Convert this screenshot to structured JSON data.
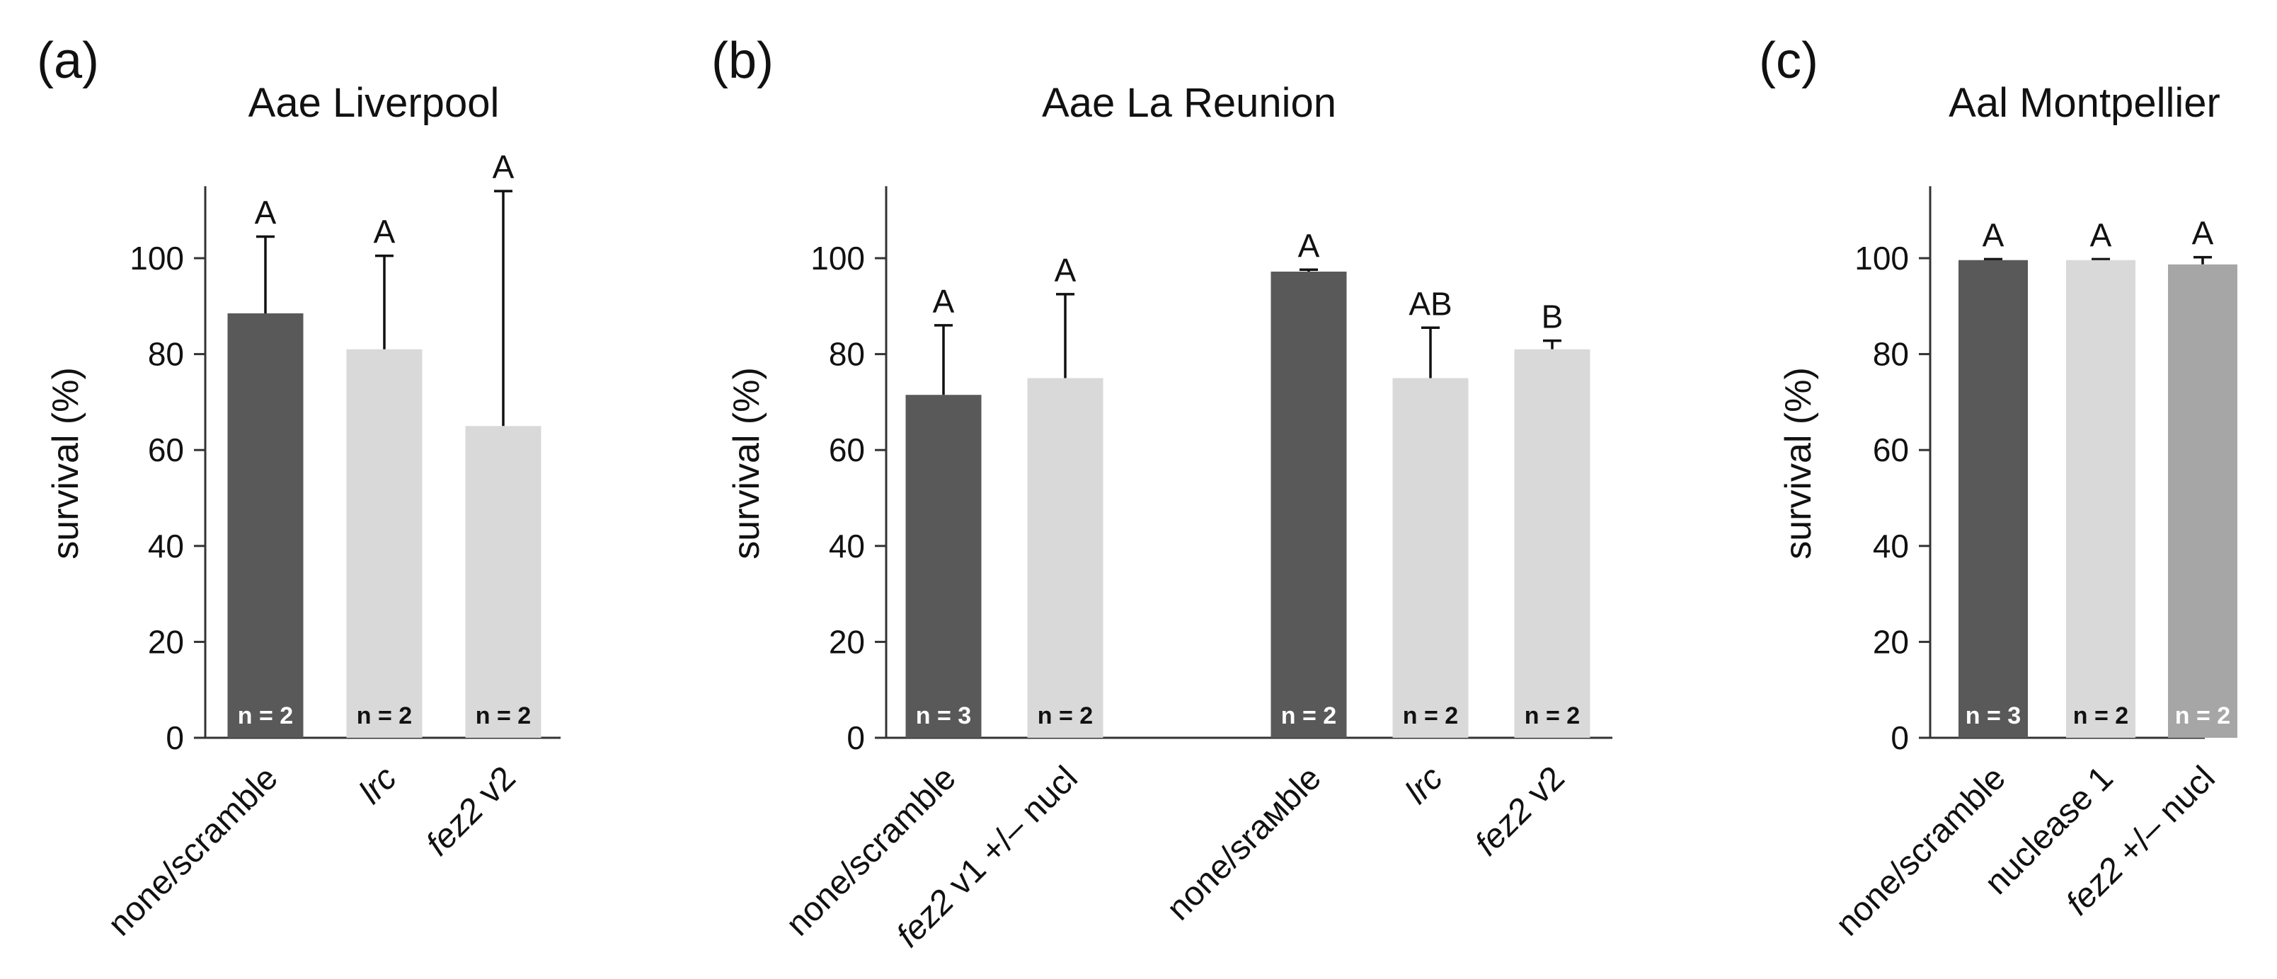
{
  "chart_data": [
    {
      "type": "bar",
      "panel": "(a)",
      "title": "Aae Liverpool",
      "ylabel": "survival (%)",
      "ylim": [
        0,
        115
      ],
      "yticks": [
        0,
        20,
        40,
        60,
        80,
        100
      ],
      "grid": false,
      "bars": [
        {
          "label": "none/scramble",
          "italic_part": "",
          "value": 88.5,
          "err": 16,
          "sig": "A",
          "n": "n = 2",
          "color": "#595959"
        },
        {
          "label": "lrc",
          "italic_part": "lrc",
          "value": 81,
          "err": 19.5,
          "sig": "A",
          "n": "n = 2",
          "color": "#d9d9d9"
        },
        {
          "label": "fez2 v2",
          "italic_part": "fez2",
          "value": 65,
          "err": 49,
          "sig": "A",
          "n": "n = 2",
          "color": "#d9d9d9"
        }
      ]
    },
    {
      "type": "bar",
      "panel": "(b)",
      "title": "Aae La Reunion",
      "ylabel": "survival (%)",
      "ylim": [
        0,
        115
      ],
      "yticks": [
        0,
        20,
        40,
        60,
        80,
        100
      ],
      "grid": false,
      "bars": [
        {
          "label": "none/scramble",
          "italic_part": "",
          "value": 71.5,
          "err": 14.5,
          "sig": "A",
          "n": "n = 3",
          "color": "#595959"
        },
        {
          "label": "fez2 v1 +/– nucl",
          "italic_part": "fez2",
          "value": 75,
          "err": 17.5,
          "sig": "A",
          "n": "n = 2",
          "color": "#d9d9d9"
        },
        {
          "label": "none/srамble",
          "italic_part": "",
          "value": 97.2,
          "err": 0.4,
          "sig": "A",
          "n": "n = 2",
          "color": "#595959"
        },
        {
          "label": "lrc",
          "italic_part": "lrc",
          "value": 75,
          "err": 10.5,
          "sig": "AB",
          "n": "n = 2",
          "color": "#d9d9d9"
        },
        {
          "label": "fez2 v2",
          "italic_part": "fez2",
          "value": 81,
          "err": 1.8,
          "sig": "B",
          "n": "n = 2",
          "color": "#d9d9d9"
        }
      ]
    },
    {
      "type": "bar",
      "panel": "(c)",
      "title": "Aal Montpellier",
      "ylabel": "survival (%)",
      "ylim": [
        0,
        115
      ],
      "yticks": [
        0,
        20,
        40,
        60,
        80,
        100
      ],
      "grid": false,
      "bars": [
        {
          "label": "none/scramble",
          "italic_part": "",
          "value": 99.6,
          "err": 0.2,
          "sig": "A",
          "n": "n = 3",
          "color": "#595959"
        },
        {
          "label": "nuclease 1",
          "italic_part": "",
          "value": 99.6,
          "err": 0.2,
          "sig": "A",
          "n": "n = 2",
          "color": "#d9d9d9"
        },
        {
          "label": "fez2 +/– nucl",
          "italic_part": "fez2",
          "value": 98.7,
          "err": 1.5,
          "sig": "A",
          "n": "n = 2",
          "color": "#a6a6a6"
        }
      ]
    }
  ]
}
